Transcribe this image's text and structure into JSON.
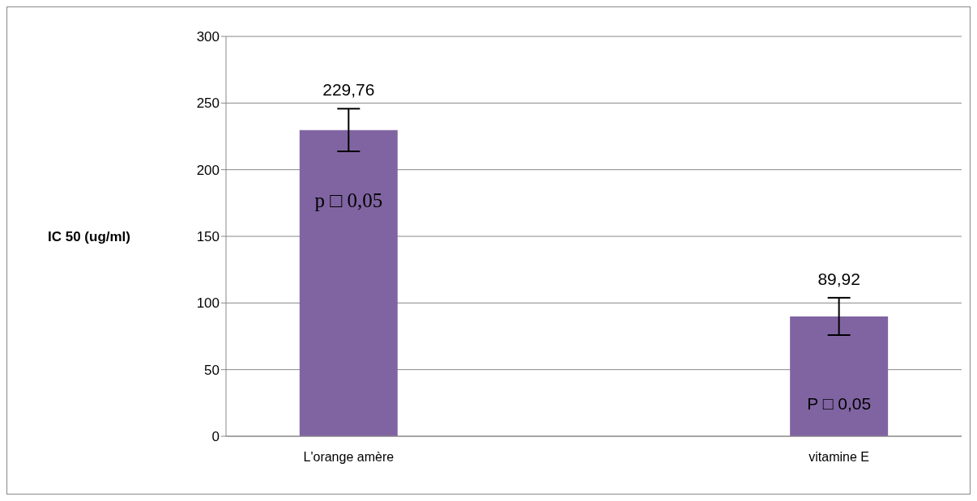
{
  "chart_data": {
    "type": "bar",
    "ylabel": "IC 50 (ug/ml)",
    "categories": [
      "L'orange amère",
      null,
      "vitamine E"
    ],
    "values": [
      229.76,
      null,
      89.92
    ],
    "errors": [
      16,
      null,
      14
    ],
    "value_labels": [
      "229,76",
      null,
      "89,92"
    ],
    "color": "#8064a2",
    "ylim": [
      0,
      300
    ],
    "yticks": [
      0,
      50,
      100,
      150,
      200,
      250,
      300
    ],
    "grid": "y",
    "legend": false,
    "annotations": [
      "p □ 0,05",
      "P □ 0,05"
    ]
  }
}
